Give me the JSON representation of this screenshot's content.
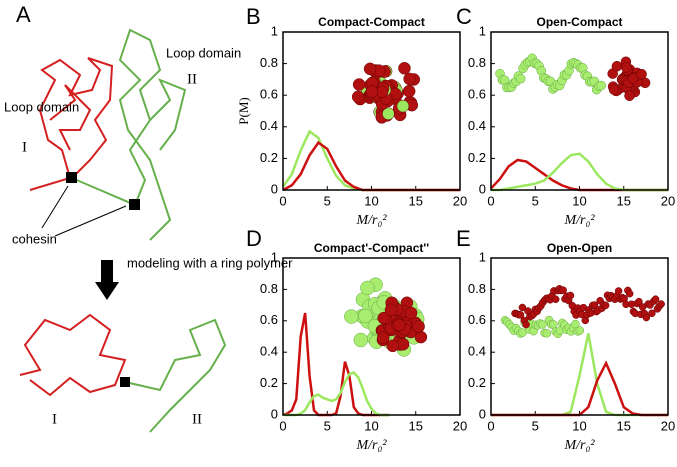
{
  "figure": {
    "panels": [
      "A"
    ],
    "diagram": {
      "loop_domain_left": "Loop domain",
      "roman_left": "I",
      "loop_domain_right": "Loop domain",
      "roman_right": "II",
      "cohesin": "cohesin",
      "modeling": "modeling with a ring polymer",
      "bottom_left": "I",
      "bottom_right": "II"
    }
  },
  "chart_data": [
    {
      "type": "line",
      "panel": "B",
      "title": "Compact-Compact",
      "xlabel": "M/r₀²",
      "ylabel": "P(M)",
      "x": [
        0,
        1,
        2,
        3,
        4,
        5,
        6,
        7,
        8,
        9,
        10,
        11,
        12,
        13,
        14,
        15,
        16,
        17,
        18,
        19,
        20
      ],
      "series": [
        {
          "color": "#9be85f",
          "values": [
            0.02,
            0.1,
            0.25,
            0.37,
            0.33,
            0.2,
            0.09,
            0.03,
            0.01,
            0,
            0,
            0,
            0,
            0,
            0,
            0,
            0,
            0,
            0,
            0,
            0
          ]
        },
        {
          "color": "#cc1010",
          "values": [
            0,
            0.03,
            0.1,
            0.22,
            0.3,
            0.26,
            0.15,
            0.06,
            0.02,
            0,
            0,
            0,
            0,
            0,
            0,
            0,
            0,
            0,
            0,
            0,
            0
          ]
        }
      ],
      "xlim": [
        0,
        20
      ],
      "ylim": [
        0,
        1
      ],
      "xticks": [
        0,
        5,
        10,
        15,
        20
      ],
      "yticks": [
        0,
        0.2,
        0.4,
        0.6,
        0.8,
        1
      ]
    },
    {
      "type": "line",
      "panel": "C",
      "title": "Open-Compact",
      "xlabel": "M/r₀²",
      "x": [
        0,
        1,
        2,
        3,
        4,
        5,
        6,
        7,
        8,
        9,
        10,
        11,
        12,
        13,
        14,
        15,
        16,
        17,
        18,
        19,
        20
      ],
      "series": [
        {
          "color": "#cc1010",
          "values": [
            0.01,
            0.07,
            0.15,
            0.19,
            0.18,
            0.14,
            0.1,
            0.06,
            0.03,
            0.01,
            0,
            0,
            0,
            0,
            0,
            0,
            0,
            0,
            0,
            0,
            0
          ]
        },
        {
          "color": "#9be85f",
          "values": [
            0,
            0,
            0.01,
            0.02,
            0.03,
            0.04,
            0.06,
            0.11,
            0.17,
            0.22,
            0.23,
            0.18,
            0.1,
            0.04,
            0.01,
            0,
            0,
            0,
            0,
            0,
            0
          ]
        }
      ],
      "xlim": [
        0,
        20
      ],
      "ylim": [
        0,
        1
      ],
      "xticks": [
        0,
        5,
        10,
        15,
        20
      ],
      "yticks": [
        0,
        0.2,
        0.4,
        0.6,
        0.8,
        1
      ]
    },
    {
      "type": "line",
      "panel": "D",
      "title": "Compact'-Compact''",
      "xlabel": "M/r₀²",
      "x": [
        0,
        0.5,
        1,
        1.5,
        2,
        2.5,
        3,
        3.5,
        4,
        4.5,
        5,
        5.5,
        6,
        6.5,
        7,
        7.5,
        8,
        8.5,
        9,
        9.5,
        10,
        10.5,
        11,
        11.5,
        12
      ],
      "series": [
        {
          "color": "#cc1010",
          "values": [
            0,
            0.01,
            0.03,
            0.1,
            0.5,
            0.65,
            0.25,
            0.03,
            0,
            0,
            0,
            0,
            0.01,
            0.12,
            0.34,
            0.25,
            0.05,
            0.01,
            0,
            0,
            0,
            0,
            0,
            0,
            0
          ]
        },
        {
          "color": "#9be85f",
          "values": [
            0,
            0,
            0,
            0,
            0.01,
            0.03,
            0.08,
            0.12,
            0.13,
            0.11,
            0.1,
            0.09,
            0.1,
            0.14,
            0.21,
            0.26,
            0.27,
            0.24,
            0.17,
            0.09,
            0.04,
            0.01,
            0,
            0,
            0
          ]
        }
      ],
      "xlim": [
        0,
        20
      ],
      "ylim": [
        0,
        1
      ],
      "xticks": [
        0,
        5,
        10,
        15,
        20
      ],
      "yticks": [
        0,
        0.2,
        0.4,
        0.6,
        0.8,
        1
      ]
    },
    {
      "type": "line",
      "panel": "E",
      "title": "Open-Open",
      "xlabel": "M/r₀²",
      "x": [
        0,
        1,
        2,
        3,
        4,
        5,
        6,
        7,
        8,
        9,
        10,
        11,
        12,
        13,
        14,
        15,
        16,
        17,
        18,
        19,
        20
      ],
      "series": [
        {
          "color": "#9be85f",
          "values": [
            0,
            0,
            0,
            0,
            0,
            0,
            0,
            0,
            0,
            0.02,
            0.25,
            0.52,
            0.2,
            0.02,
            0,
            0,
            0,
            0,
            0,
            0,
            0
          ]
        },
        {
          "color": "#cc1010",
          "values": [
            0,
            0,
            0,
            0,
            0,
            0,
            0,
            0,
            0,
            0,
            0,
            0.05,
            0.22,
            0.33,
            0.2,
            0.05,
            0.01,
            0,
            0,
            0,
            0
          ]
        }
      ],
      "xlim": [
        0,
        20
      ],
      "ylim": [
        0,
        1
      ],
      "xticks": [
        0,
        5,
        10,
        15,
        20
      ],
      "yticks": [
        0,
        0.2,
        0.4,
        0.6,
        0.8,
        1
      ]
    }
  ]
}
